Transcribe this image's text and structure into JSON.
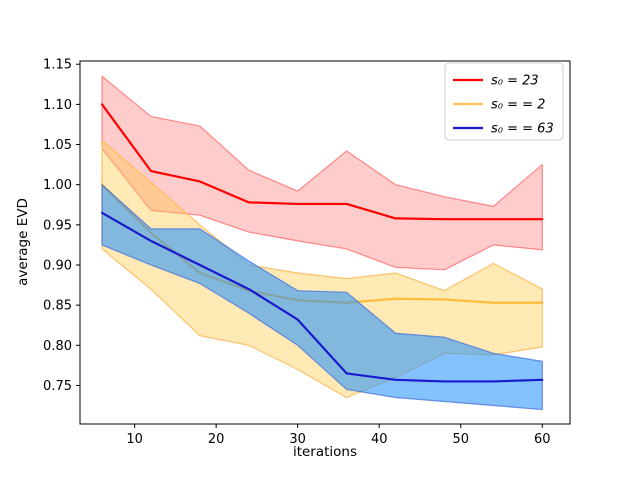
{
  "figure": {
    "background": "#ffffff"
  },
  "chart_data": {
    "type": "line",
    "title": "",
    "xlabel": "iterations",
    "ylabel": "average EVD",
    "x": [
      6,
      12,
      18,
      24,
      30,
      36,
      42,
      48,
      54,
      60
    ],
    "xlim": [
      3.3,
      63.4
    ],
    "ylim": [
      0.702,
      1.154
    ],
    "x_ticks": [
      10,
      20,
      30,
      40,
      50,
      60
    ],
    "y_ticks": [
      0.75,
      0.8,
      0.85,
      0.9,
      0.95,
      1.0,
      1.05,
      1.1,
      1.15
    ],
    "grid": false,
    "legend_position": "upper right",
    "series": [
      {
        "name": "s₀ = 23",
        "line_color": "#ff0000",
        "fill_color": "rgba(255,40,40,0.24)",
        "edge_color": "rgba(255,70,70,0.60)",
        "values": [
          1.1,
          1.017,
          1.004,
          0.978,
          0.976,
          0.976,
          0.958,
          0.957,
          0.957,
          0.957
        ],
        "band_upper": [
          1.135,
          1.085,
          1.073,
          1.018,
          0.992,
          1.042,
          1.0,
          0.985,
          0.973,
          1.025
        ],
        "band_lower": [
          1.045,
          0.968,
          0.962,
          0.941,
          0.93,
          0.92,
          0.897,
          0.894,
          0.925,
          0.919
        ]
      },
      {
        "name": "s₀ = = 2",
        "line_color": "rgba(255,165,0,0.68)",
        "fill_color": "rgba(255,200,70,0.40)",
        "edge_color": "rgba(252,185,85,0.85)",
        "values": [
          1.0,
          0.94,
          0.89,
          0.868,
          0.856,
          0.853,
          0.858,
          0.857,
          0.853,
          0.853
        ],
        "band_upper": [
          1.055,
          1.003,
          0.95,
          0.9,
          0.89,
          0.883,
          0.89,
          0.868,
          0.902,
          0.87
        ],
        "band_lower": [
          0.92,
          0.87,
          0.812,
          0.8,
          0.77,
          0.735,
          0.76,
          0.79,
          0.788,
          0.798
        ]
      },
      {
        "name": "s₀ = = 63",
        "line_color": "#1a1acd",
        "fill_color": "rgba(30,144,255,0.55)",
        "edge_color": "rgba(60,105,220,0.70)",
        "values": [
          0.965,
          0.93,
          0.9,
          0.87,
          0.832,
          0.765,
          0.757,
          0.755,
          0.755,
          0.757
        ],
        "band_upper": [
          1.0,
          0.945,
          0.945,
          0.905,
          0.868,
          0.866,
          0.815,
          0.81,
          0.79,
          0.78
        ],
        "band_lower": [
          0.925,
          0.9,
          0.877,
          0.84,
          0.8,
          0.745,
          0.735,
          0.73,
          0.725,
          0.72
        ]
      }
    ],
    "legend": {
      "entries": [
        "s₀ = 23",
        "s₀ = = 2",
        "s₀ = = 63"
      ],
      "border_color": "#cccccc",
      "background": "#ffffff"
    }
  }
}
